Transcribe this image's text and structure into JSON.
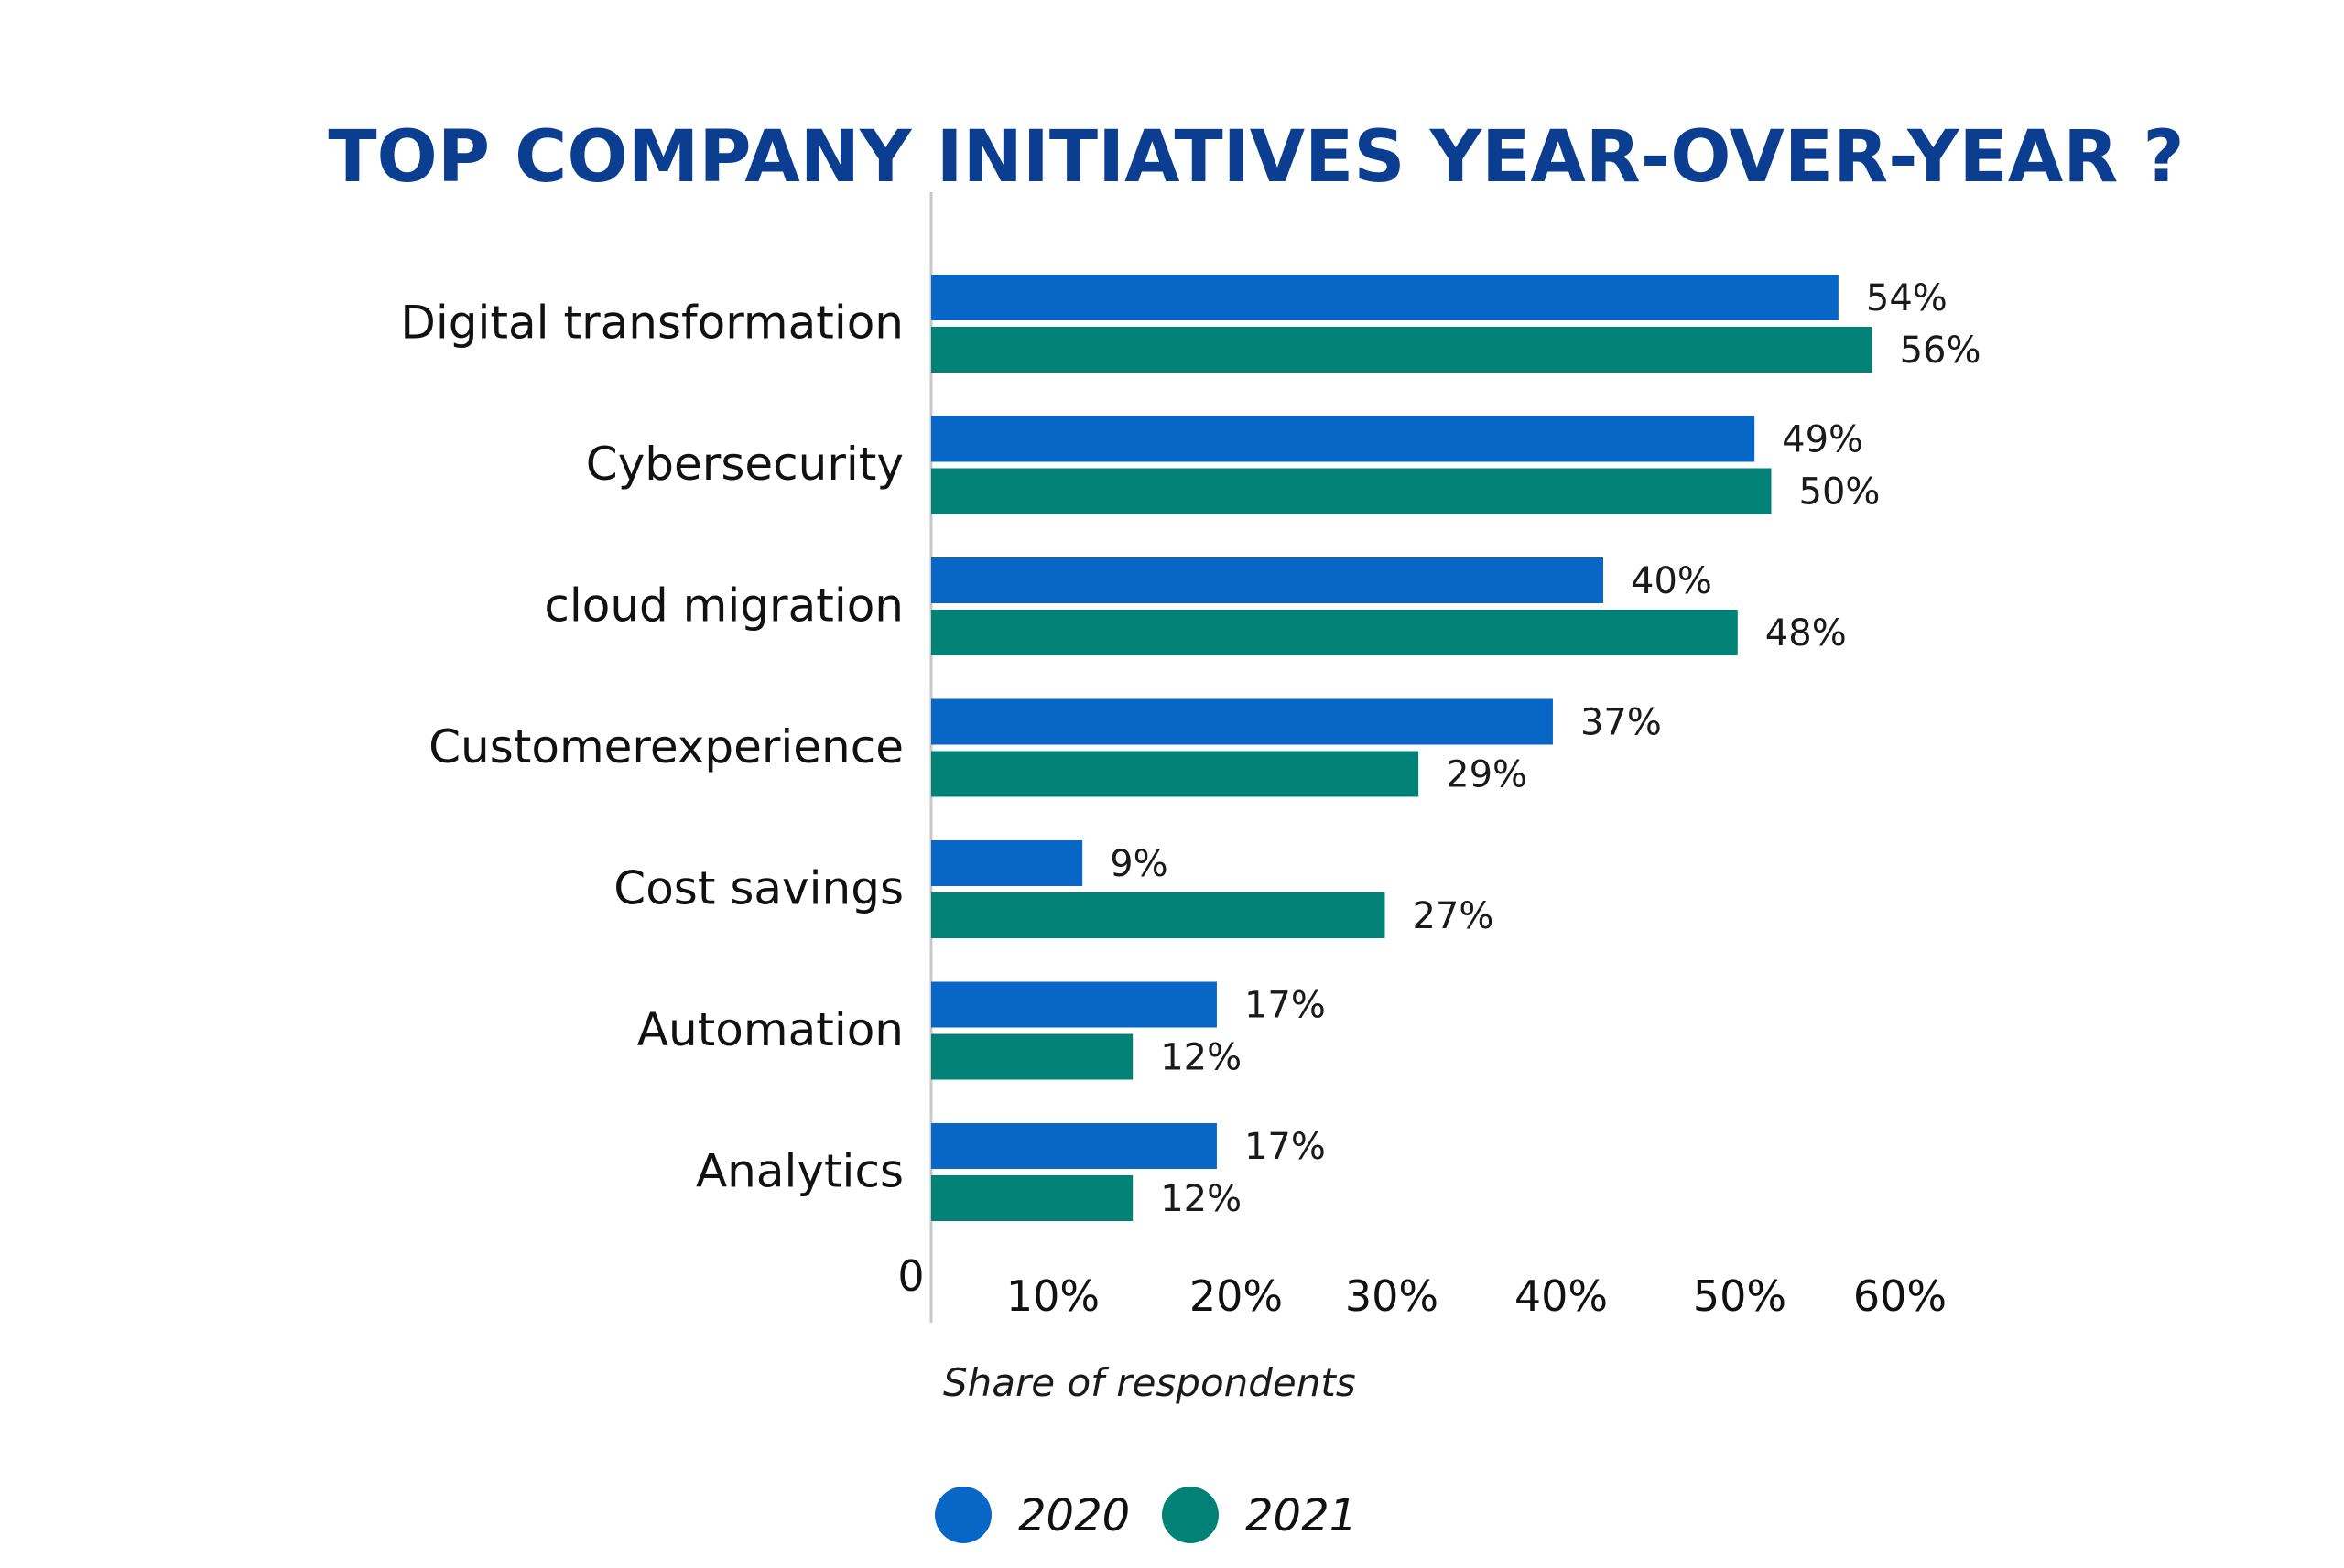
{
  "chart_data": {
    "type": "bar",
    "orientation": "horizontal",
    "title": "TOP COMPANY INITIATIVES YEAR-OVER-YEAR ?",
    "xlabel": "Share of respondents",
    "ylabel": "",
    "categories": [
      "Digital transformation",
      "Cybersecurity",
      "cloud migration",
      "Customerexperience",
      "Cost savings",
      "Automation",
      "Analytics"
    ],
    "series": [
      {
        "name": "2020",
        "color": "#0866c6",
        "values": [
          54,
          49,
          40,
          37,
          9,
          17,
          17
        ],
        "labels": [
          "54%",
          "49%",
          "40%",
          "37%",
          "9%",
          "17%",
          "17%"
        ]
      },
      {
        "name": "2021",
        "color": "#028277",
        "values": [
          56,
          50,
          48,
          29,
          27,
          12,
          12
        ],
        "labels": [
          "56%",
          "50%",
          "48%",
          "29%",
          "27%",
          "12%",
          "12%"
        ]
      }
    ],
    "xticks": [
      {
        "value": 0,
        "label": "0"
      },
      {
        "value": 10,
        "label": "10%"
      },
      {
        "value": 20,
        "label": "20%"
      },
      {
        "value": 30,
        "label": "30%"
      },
      {
        "value": 40,
        "label": "40%"
      },
      {
        "value": 50,
        "label": "50%"
      },
      {
        "value": 60,
        "label": "60%"
      }
    ],
    "xlim": [
      0,
      60
    ],
    "grid": false,
    "legend_position": "bottom",
    "title_color": "#0b3e91"
  }
}
